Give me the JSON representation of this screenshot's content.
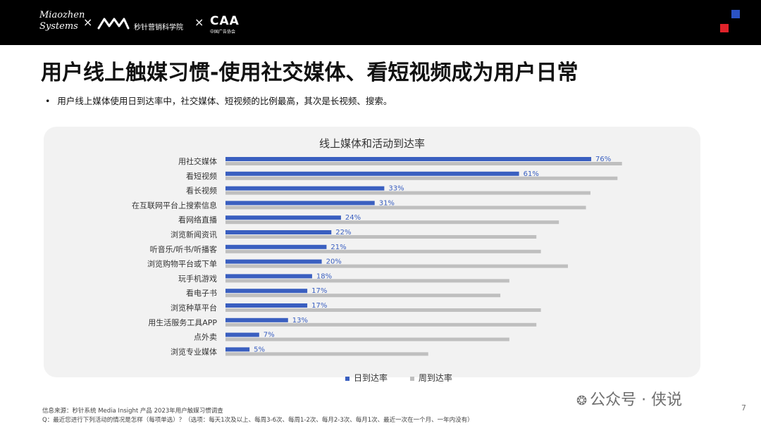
{
  "header": {
    "brand_line1": "Miaozhen",
    "brand_line2": "Systems",
    "separator": "×",
    "school": "秒针营销科学院",
    "partner_mark": "CAA",
    "partner_sub": "中国广告协会",
    "colors": {
      "bar": "#000000",
      "accent_blue": "#2b53c4",
      "accent_red": "#e0232a"
    }
  },
  "title": "用户线上触媒习惯-使用社交媒体、看短视频成为用户日常",
  "bullet": "用户线上媒体使用日到达率中，社交媒体、短视频的比例最高，其次是长视频、搜索。",
  "chart_data": {
    "type": "bar",
    "orientation": "horizontal",
    "title": "线上媒体和活动到达率",
    "categories": [
      "用社交媒体",
      "看短视频",
      "看长视频",
      "在互联网平台上搜索信息",
      "看网络直播",
      "浏览新闻资讯",
      "听音乐/听书/听播客",
      "浏览购物平台或下单",
      "玩手机游戏",
      "看电子书",
      "浏览种草平台",
      "用生活服务工具APP",
      "点外卖",
      "浏览专业媒体"
    ],
    "series": [
      {
        "name": "日到达率",
        "color": "#3a5fc0",
        "values": [
          76,
          61,
          33,
          31,
          24,
          22,
          21,
          20,
          18,
          17,
          17,
          13,
          7,
          5
        ],
        "labels": [
          "76%",
          "61%",
          "33%",
          "31%",
          "24%",
          "22%",
          "21%",
          "20%",
          "18%",
          "17%",
          "17%",
          "13%",
          "7%",
          "5%"
        ]
      },
      {
        "name": "周到达率",
        "color": "#bfbfbf",
        "values": [
          88,
          87,
          81,
          80,
          74,
          69,
          70,
          76,
          63,
          61,
          70,
          69,
          63,
          45
        ]
      }
    ],
    "xlim": [
      0,
      100
    ],
    "legend": "bottom",
    "grid": false
  },
  "legend": {
    "daily": "日到达率",
    "weekly": "周到达率"
  },
  "footer": {
    "source": "信息来源：秒针系统 Media Insight 产品  2023年用户触媒习惯调查",
    "question": "Q：最近您进行下列活动的情况是怎样（每项单选）？（选项：每天1次及以上、每周3-6次、每周1-2次、每月2-3次、每月1次、最近一次在一个月、一年内没有）",
    "watermark": "公众号 · 侠说",
    "page_number": "7"
  }
}
